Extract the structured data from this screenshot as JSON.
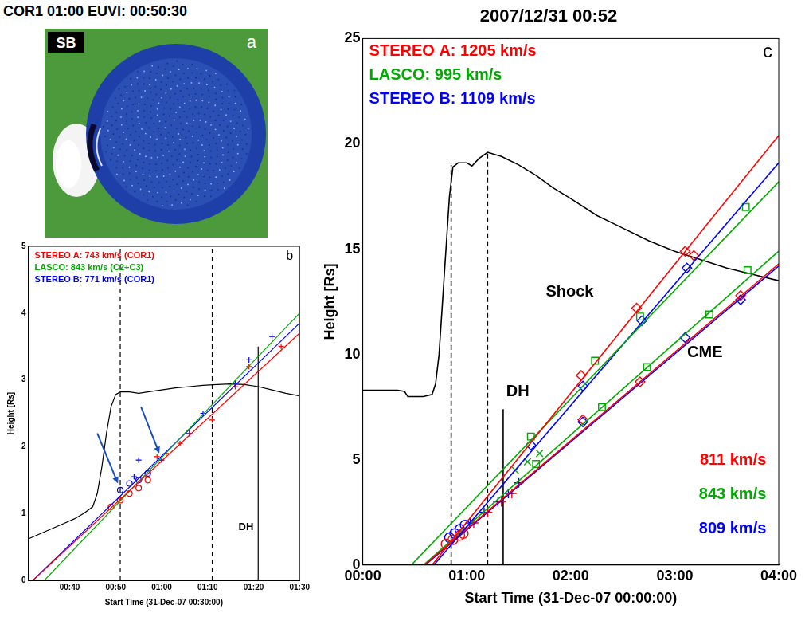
{
  "panel_a": {
    "header": "COR1 01:00 EUVI: 00:50:30",
    "tag": "SB",
    "panel": "a"
  },
  "chart_data": [
    {
      "type": "scatter",
      "panel": "b",
      "x_label": "Start Time (31-Dec-07 00:30:00)",
      "y_label": "Height [Rs]",
      "xlim": [
        31,
        90
      ],
      "xticks": [
        {
          "value": 40,
          "label": "00:40"
        },
        {
          "value": 50,
          "label": "00:50"
        },
        {
          "value": 60,
          "label": "01:00"
        },
        {
          "value": 70,
          "label": "01:10"
        },
        {
          "value": 80,
          "label": "01:20"
        },
        {
          "value": 90,
          "label": "01:30"
        }
      ],
      "ylim": [
        0,
        5
      ],
      "yticks": [
        0,
        1,
        2,
        3,
        4,
        5
      ],
      "grid": false,
      "legend": "upper left",
      "series": [
        {
          "name": "STEREO A: 743 km/s (COR1)",
          "type": "line",
          "color": "#ff0000",
          "line_style": "solid",
          "x": [
            32,
            90
          ],
          "values": [
            0,
            3.7
          ]
        },
        {
          "name": "LASCO: 843 km/s (C2+C3)",
          "type": "line",
          "color": "#00aa00",
          "line_style": "solid",
          "x": [
            34.5,
            90
          ],
          "values": [
            0,
            4.0
          ]
        },
        {
          "name": "STEREO B: 771 km/s (COR1)",
          "type": "line",
          "color": "#0000ff",
          "line_style": "solid",
          "x": [
            32,
            90
          ],
          "values": [
            0,
            3.85
          ]
        },
        {
          "type": "scatter",
          "color": "#ff0000",
          "marker": "circle",
          "x": [
            49,
            51,
            53,
            55,
            57
          ],
          "values": [
            1.1,
            1.2,
            1.3,
            1.38,
            1.5
          ]
        },
        {
          "type": "scatter",
          "color": "#0000ff",
          "marker": "circle",
          "x": [
            51,
            53,
            55,
            57
          ],
          "values": [
            1.35,
            1.45,
            1.5,
            1.6
          ]
        },
        {
          "type": "scatter",
          "color": "#ff0000",
          "marker": "plus",
          "x": [
            59,
            61,
            64,
            66,
            71,
            76,
            79,
            86
          ],
          "values": [
            1.85,
            1.9,
            2.05,
            2.2,
            2.4,
            2.9,
            3.2,
            3.5
          ]
        },
        {
          "type": "scatter",
          "color": "#0000ff",
          "marker": "plus",
          "x": [
            54,
            55,
            60,
            66,
            69,
            76,
            79,
            84
          ],
          "values": [
            1.55,
            1.8,
            1.8,
            2.2,
            2.5,
            2.95,
            3.3,
            3.65
          ]
        },
        {
          "type": "line",
          "color": "#000000",
          "line_style": "solid",
          "x": [
            31,
            33,
            35,
            37,
            39,
            41,
            43,
            45,
            46,
            47,
            48,
            49,
            50,
            51,
            53,
            55,
            57,
            60,
            63,
            66,
            69,
            72,
            75,
            78,
            81,
            84,
            87,
            90
          ],
          "values": [
            0.62,
            0.68,
            0.74,
            0.8,
            0.86,
            0.92,
            1.0,
            1.1,
            1.3,
            1.7,
            2.2,
            2.6,
            2.78,
            2.82,
            2.82,
            2.8,
            2.82,
            2.85,
            2.88,
            2.9,
            2.92,
            2.93,
            2.94,
            2.93,
            2.9,
            2.85,
            2.8,
            2.76
          ]
        },
        {
          "type": "line",
          "color": "#000000",
          "line_style": "dashed",
          "x": [
            51,
            51
          ],
          "values": [
            0,
            5
          ]
        },
        {
          "type": "line",
          "color": "#000000",
          "line_style": "dashed",
          "x": [
            71,
            71
          ],
          "values": [
            0,
            5
          ]
        },
        {
          "type": "line",
          "color": "#000000",
          "line_style": "solid",
          "x": [
            81,
            81
          ],
          "values": [
            0,
            3.5
          ]
        },
        {
          "type": "arrow",
          "color": "#1a4fc0",
          "x": [
            46,
            50.5
          ],
          "values": [
            2.2,
            1.45
          ]
        },
        {
          "type": "arrow",
          "color": "#1a4fc0",
          "x": [
            55.5,
            59.5
          ],
          "values": [
            2.6,
            1.9
          ]
        }
      ],
      "annotations": [
        {
          "text": "DH",
          "color": "#000000"
        }
      ]
    },
    {
      "type": "scatter",
      "panel": "c",
      "title": "2007/12/31 00:52",
      "x_label": "Start Time (31-Dec-07 00:00:00)",
      "y_label": "Height [Rs]",
      "xlim": [
        0,
        240
      ],
      "xticks": [
        {
          "value": 0,
          "label": "00:00"
        },
        {
          "value": 60,
          "label": "01:00"
        },
        {
          "value": 120,
          "label": "02:00"
        },
        {
          "value": 180,
          "label": "03:00"
        },
        {
          "value": 240,
          "label": "04:00"
        }
      ],
      "ylim": [
        0,
        25
      ],
      "yticks": [
        0,
        5,
        10,
        15,
        20,
        25
      ],
      "grid": false,
      "legend": "upper left",
      "series": [
        {
          "name": "STEREO A: 1205 km/s",
          "type": "line",
          "color": "#ff0000",
          "line_style": "solid",
          "x": [
            40,
            240
          ],
          "values": [
            0,
            20.4
          ]
        },
        {
          "name": "LASCO: 995 km/s",
          "type": "line",
          "color": "#00aa00",
          "line_style": "solid",
          "x": [
            28,
            240
          ],
          "values": [
            0,
            18.2
          ]
        },
        {
          "name": "STEREO B: 1109 km/s",
          "type": "line",
          "color": "#0000ff",
          "line_style": "solid",
          "x": [
            41,
            240
          ],
          "values": [
            0,
            19.1
          ]
        },
        {
          "type": "line",
          "color": "#ff0000",
          "line_style": "solid",
          "x": [
            35.5,
            240
          ],
          "values": [
            0,
            14.3
          ]
        },
        {
          "type": "line",
          "color": "#00aa00",
          "line_style": "solid",
          "x": [
            35,
            240
          ],
          "values": [
            0,
            14.9
          ]
        },
        {
          "type": "line",
          "color": "#0000ff",
          "line_style": "solid",
          "x": [
            36,
            240
          ],
          "values": [
            0,
            14.2
          ]
        },
        {
          "type": "scatter",
          "color": "#ff0000",
          "marker": "diamond",
          "x": [
            126,
            158,
            186,
            191,
            127,
            160,
            218
          ],
          "values": [
            9.0,
            12.2,
            14.9,
            14.7,
            6.9,
            8.7,
            12.8
          ]
        },
        {
          "type": "scatter",
          "color": "#00aa00",
          "marker": "square",
          "x": [
            97,
            134,
            160,
            221,
            100,
            138,
            164,
            200,
            222
          ],
          "values": [
            6.1,
            9.7,
            11.8,
            17.0,
            4.8,
            7.5,
            9.4,
            11.9,
            14.0
          ]
        },
        {
          "type": "scatter",
          "color": "#0000ff",
          "marker": "diamond",
          "x": [
            127,
            161,
            187,
            97,
            127,
            186,
            218
          ],
          "values": [
            8.5,
            11.6,
            14.1,
            5.7,
            6.8,
            10.8,
            12.6
          ]
        },
        {
          "type": "scatter",
          "color": "#00aa00",
          "marker": "x",
          "x": [
            88,
            95,
            102
          ],
          "values": [
            4.5,
            4.9,
            5.3
          ]
        },
        {
          "type": "scatter",
          "color": "#ff0000",
          "marker": "circle",
          "x": [
            48,
            52,
            56,
            58
          ],
          "values": [
            1.0,
            1.2,
            1.4,
            1.5
          ]
        },
        {
          "type": "scatter",
          "color": "#0000ff",
          "marker": "circle",
          "x": [
            50,
            53,
            56,
            59
          ],
          "values": [
            1.3,
            1.5,
            1.7,
            1.9
          ]
        },
        {
          "type": "scatter",
          "color": "#0000ff",
          "marker": "plus",
          "x": [
            62,
            70,
            78,
            84,
            90
          ],
          "values": [
            2.0,
            2.5,
            3.0,
            3.4,
            3.9
          ]
        },
        {
          "type": "scatter",
          "color": "#ff0000",
          "marker": "plus",
          "x": [
            64,
            72,
            80,
            86
          ],
          "values": [
            2.0,
            2.5,
            3.0,
            3.4
          ]
        },
        {
          "type": "line",
          "color": "#000000",
          "line_style": "solid",
          "x": [
            0,
            10,
            20,
            24,
            26,
            35,
            40,
            42,
            44,
            46,
            48,
            50,
            52,
            55,
            60,
            63,
            67,
            72,
            80,
            90,
            100,
            110,
            120,
            135,
            150,
            165,
            180,
            195,
            210,
            225,
            240
          ],
          "values": [
            8.3,
            8.3,
            8.3,
            8.25,
            8.0,
            8.0,
            8.1,
            8.6,
            10,
            12.5,
            15,
            17.5,
            18.9,
            19.1,
            19.1,
            18.95,
            19.3,
            19.6,
            19.4,
            19.0,
            18.5,
            17.9,
            17.4,
            16.6,
            16.0,
            15.4,
            14.9,
            14.5,
            14.1,
            13.8,
            13.5
          ]
        },
        {
          "type": "line",
          "color": "#000000",
          "line_style": "dashed",
          "x": [
            51,
            51
          ],
          "values": [
            0,
            19.0
          ]
        },
        {
          "type": "line",
          "color": "#000000",
          "line_style": "dashed",
          "x": [
            72,
            72
          ],
          "values": [
            0,
            19.6
          ]
        },
        {
          "type": "line",
          "color": "#000000",
          "line_style": "solid",
          "x": [
            81,
            81
          ],
          "values": [
            0,
            7.4
          ]
        }
      ],
      "annotations": [
        {
          "text": "Shock",
          "color": "#000000"
        },
        {
          "text": "CME",
          "color": "#000000"
        },
        {
          "text": "DH",
          "color": "#000000"
        },
        {
          "text": "811 km/s",
          "color": "#ff0000"
        },
        {
          "text": "843 km/s",
          "color": "#00aa00"
        },
        {
          "text": "809 km/s",
          "color": "#0000ff"
        }
      ]
    }
  ]
}
